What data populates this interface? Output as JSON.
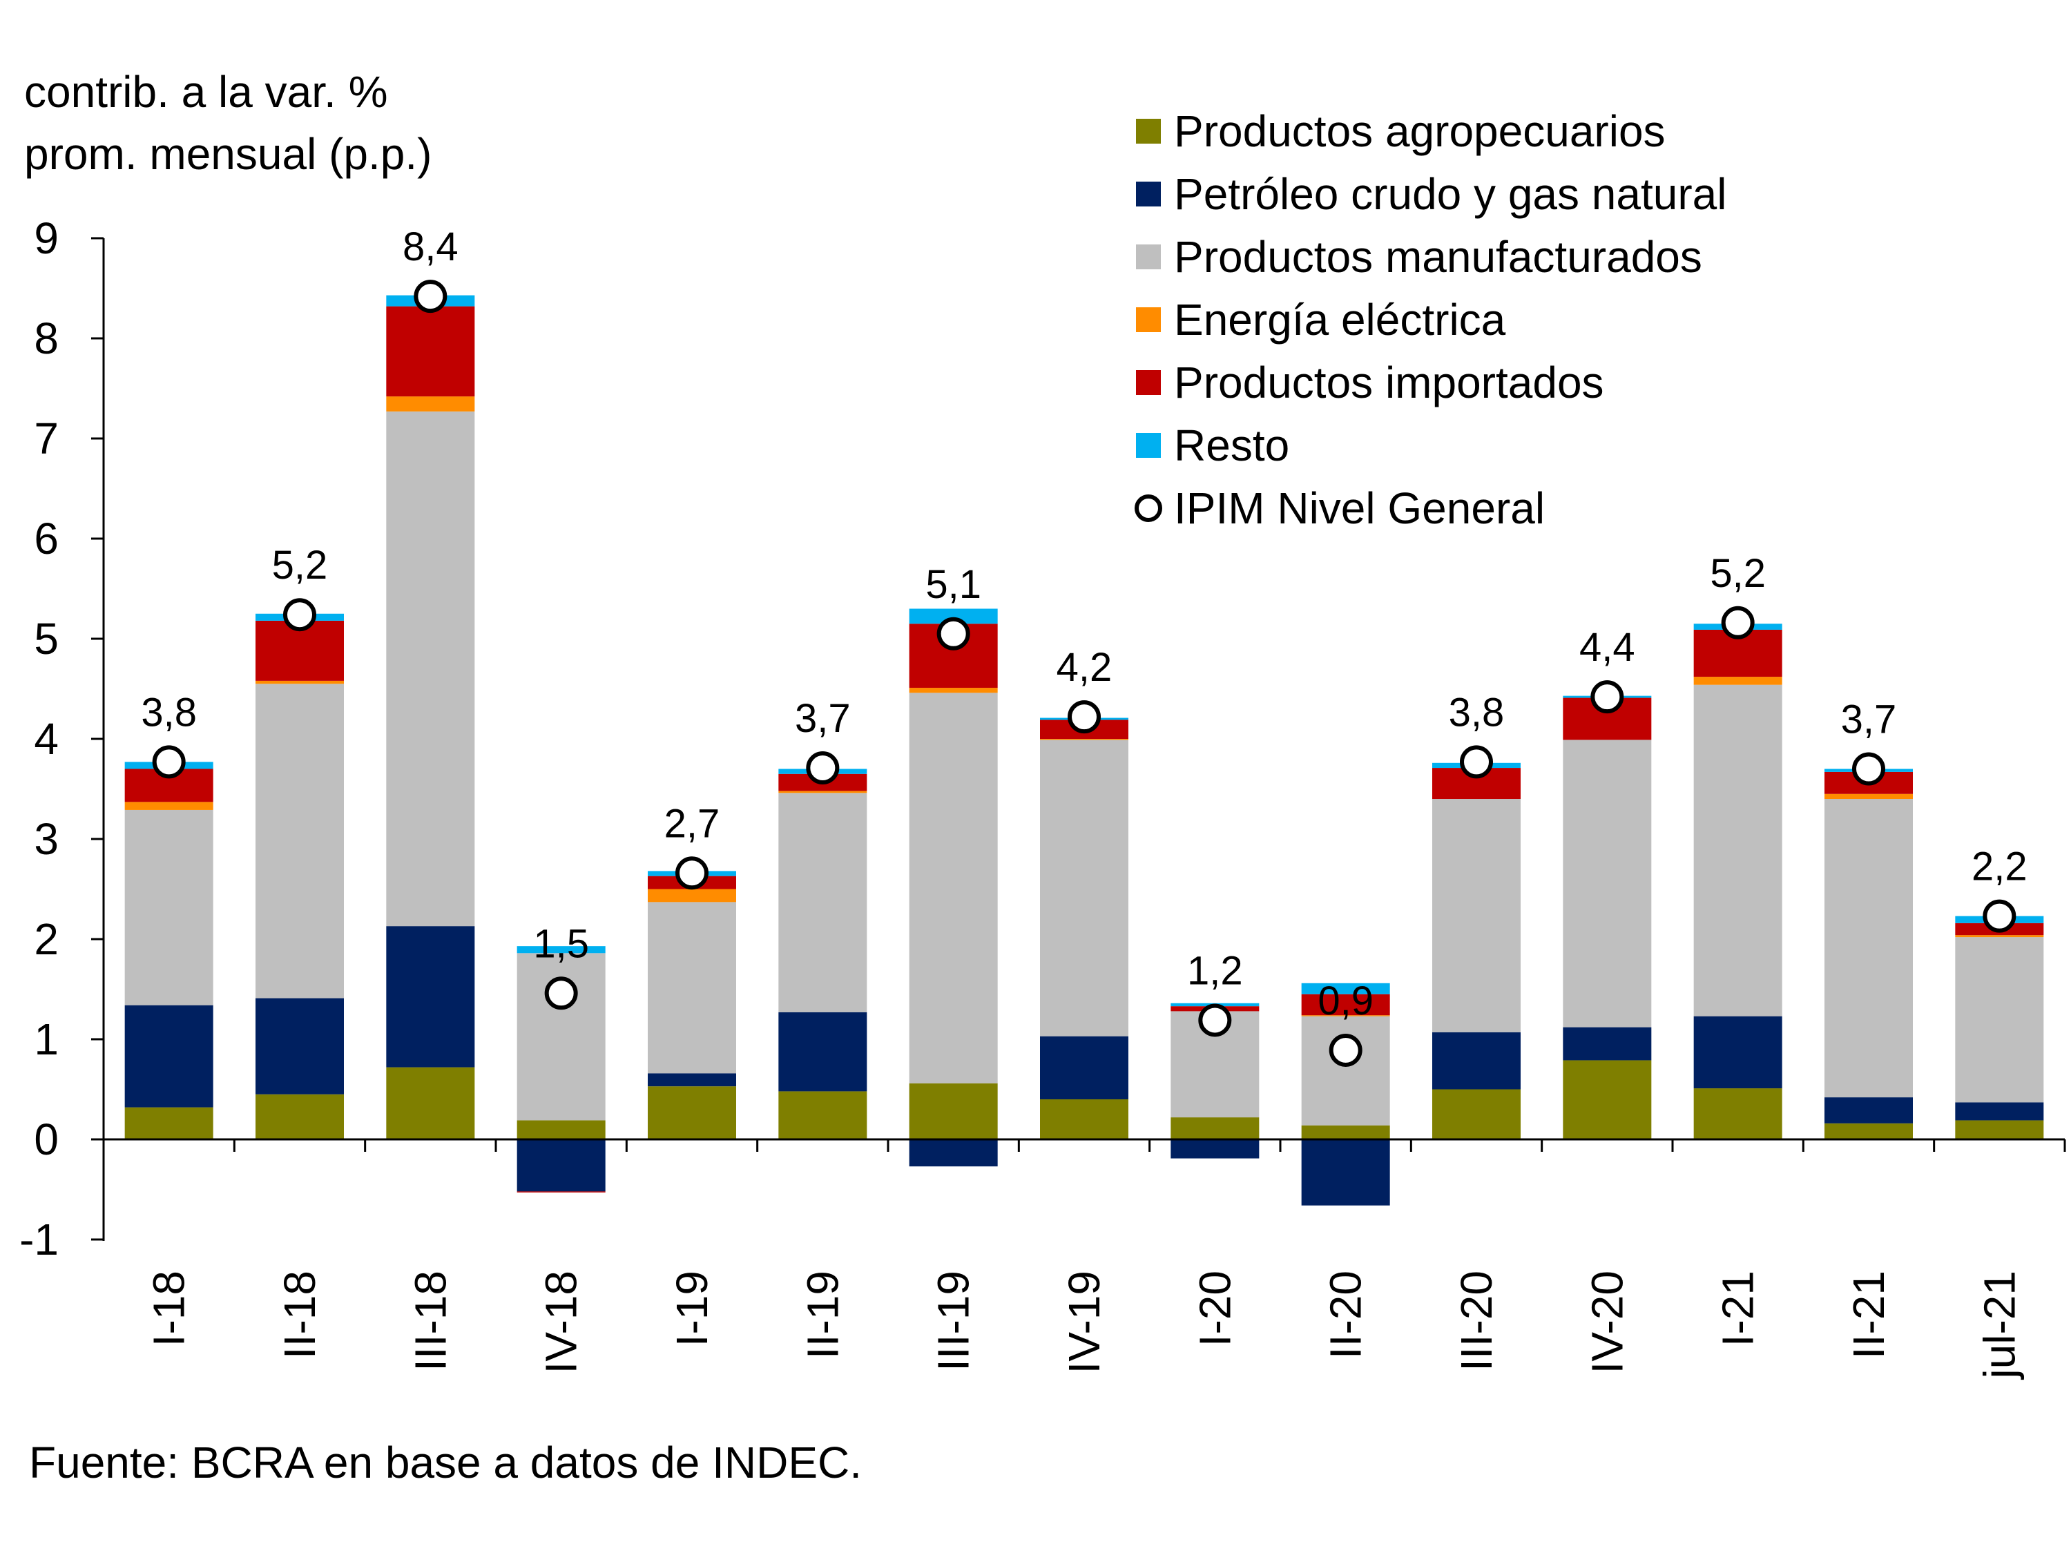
{
  "chart_data": {
    "type": "bar",
    "stacked": true,
    "ylabel_lines": [
      "contrib. a la var. %",
      "prom. mensual (p.p.)"
    ],
    "ylim": [
      -1,
      9
    ],
    "yticks": [
      "9",
      "8",
      "7",
      "6",
      "5",
      "4",
      "3",
      "2",
      "1",
      "0",
      "-1"
    ],
    "ytick_values": [
      9,
      8,
      7,
      6,
      5,
      4,
      3,
      2,
      1,
      0,
      -1
    ],
    "categories": [
      "I-18",
      "II-18",
      "III-18",
      "IV-18",
      "I-19",
      "II-19",
      "III-19",
      "IV-19",
      "I-20",
      "II-20",
      "III-20",
      "IV-20",
      "I-21",
      "II-21",
      "jul-21"
    ],
    "series": [
      {
        "name": "Productos agropecuarios",
        "color": "#7f7f00",
        "values": [
          0.32,
          0.45,
          0.72,
          0.19,
          0.53,
          0.48,
          0.56,
          0.4,
          0.22,
          0.14,
          0.5,
          0.79,
          0.51,
          0.16,
          0.19
        ]
      },
      {
        "name": "Petróleo crudo y gas natural",
        "color": "#002060",
        "values": [
          1.02,
          0.96,
          1.41,
          -0.52,
          0.13,
          0.79,
          -0.27,
          0.63,
          -0.19,
          -0.66,
          0.57,
          0.33,
          0.72,
          0.26,
          0.18
        ]
      },
      {
        "name": "Productos manufacturados",
        "color": "#bfbfbf",
        "values": [
          1.95,
          3.14,
          5.14,
          1.67,
          1.71,
          2.19,
          3.9,
          2.96,
          1.06,
          1.09,
          2.33,
          2.87,
          3.31,
          2.98,
          1.65
        ]
      },
      {
        "name": "Energía eléctrica",
        "color": "#ff8c00",
        "values": [
          0.08,
          0.03,
          0.15,
          0.0,
          0.13,
          0.02,
          0.05,
          0.01,
          0.0,
          0.01,
          0.0,
          0.0,
          0.08,
          0.05,
          0.02
        ]
      },
      {
        "name": "Productos importados",
        "color": "#c00000",
        "values": [
          0.33,
          0.6,
          0.9,
          -0.01,
          0.13,
          0.17,
          0.64,
          0.19,
          0.05,
          0.21,
          0.31,
          0.42,
          0.47,
          0.22,
          0.12
        ]
      },
      {
        "name": "Resto",
        "color": "#00b0f0",
        "values": [
          0.07,
          0.07,
          0.11,
          0.07,
          0.05,
          0.05,
          0.15,
          0.02,
          0.03,
          0.11,
          0.05,
          0.02,
          0.06,
          0.03,
          0.07
        ]
      }
    ],
    "line": {
      "name": "IPIM Nivel General",
      "values": [
        3.77,
        5.24,
        8.42,
        1.46,
        2.66,
        3.71,
        5.05,
        4.22,
        1.19,
        0.89,
        3.77,
        4.42,
        5.16,
        3.7,
        2.23
      ],
      "labels": [
        "3,8",
        "5,2",
        "8,4",
        "1,5",
        "2,7",
        "3,7",
        "5,1",
        "4,2",
        "1,2",
        "0,9",
        "3,8",
        "4,4",
        "5,2",
        "3,7",
        "2,2"
      ]
    },
    "legend_position": "top-right",
    "grid": false
  },
  "source": "Fuente: BCRA en base a datos de INDEC."
}
